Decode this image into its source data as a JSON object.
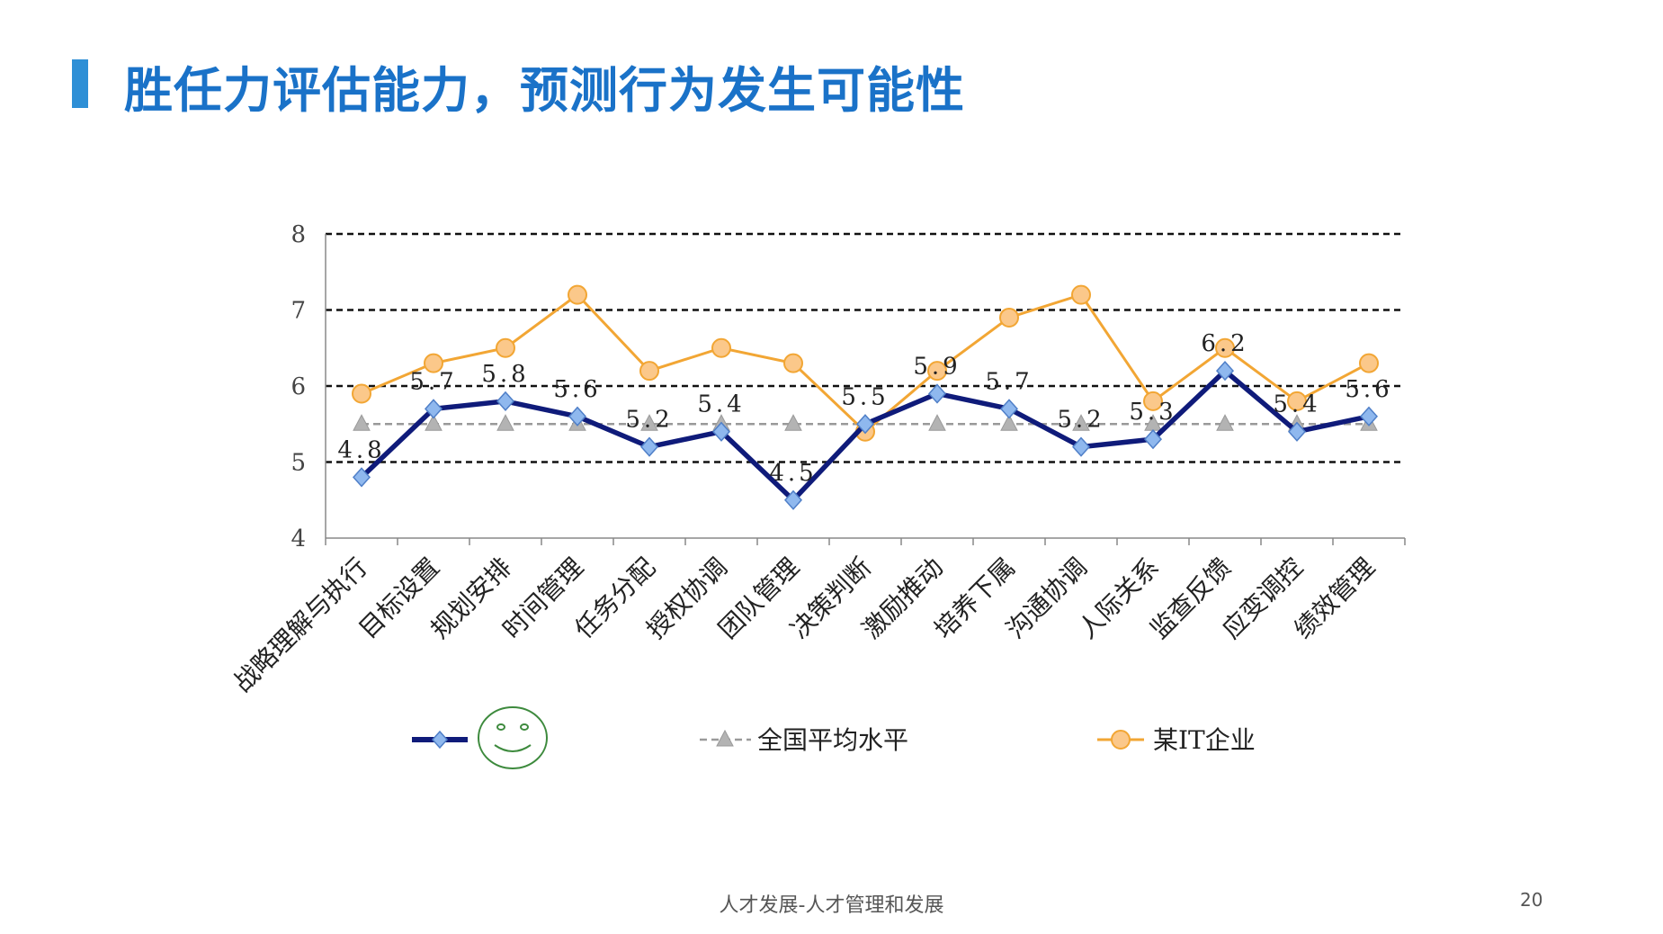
{
  "slide": {
    "title": "胜任力评估能力，预测行为发生可能性",
    "footer": "人才发展-人才管理和发展",
    "page_number": "20"
  },
  "colors": {
    "title": "#1a72c8",
    "accent_bar": "#2e8fd6",
    "series_main": "#0f1b7a",
    "series_main_marker": "#8fb8ee",
    "series_avg": "#9a9a9a",
    "series_it": "#f2a634",
    "series_it_marker": "#fbc88a",
    "smiley": "#3d8a3d"
  },
  "legend_icons": [
    "smiley-face-icon"
  ],
  "chart_data": {
    "type": "line",
    "categories": [
      "战略理解与执行",
      "目标设置",
      "规划安排",
      "时间管理",
      "任务分配",
      "授权协调",
      "团队管理",
      "决策判断",
      "激励推动",
      "培养下属",
      "沟通协调",
      "人际关系",
      "监查反馈",
      "应变调控",
      "绩效管理"
    ],
    "ylim": [
      4,
      8
    ],
    "yticks": [
      "4",
      "5",
      "6",
      "7",
      "8"
    ],
    "grid_values": [
      5,
      6,
      7,
      8
    ],
    "grid": true,
    "legend_position": "bottom",
    "series": [
      {
        "key": "main",
        "name": "",
        "marker": "diamond",
        "values": [
          4.8,
          5.7,
          5.8,
          5.6,
          5.2,
          5.4,
          4.5,
          5.5,
          5.9,
          5.7,
          5.2,
          5.3,
          6.2,
          5.4,
          5.6
        ],
        "data_labels": [
          "4.8",
          "5.7",
          "5.8",
          "5.6",
          "5.2",
          "5.4",
          "4.5",
          "5.5",
          "5.9",
          "5.7",
          "5.2",
          "5.3",
          "6.2",
          "5.4",
          "5.6"
        ]
      },
      {
        "key": "avg",
        "name": "全国平均水平",
        "marker": "triangle",
        "values": [
          5.5,
          5.5,
          5.5,
          5.5,
          5.5,
          5.5,
          5.5,
          5.5,
          5.5,
          5.5,
          5.5,
          5.5,
          5.5,
          5.5,
          5.5
        ]
      },
      {
        "key": "it",
        "name": "某IT企业",
        "marker": "circle",
        "values": [
          5.9,
          6.3,
          6.5,
          7.2,
          6.2,
          6.5,
          6.3,
          5.4,
          6.2,
          6.9,
          7.2,
          5.8,
          6.5,
          5.8,
          6.3
        ]
      }
    ]
  }
}
